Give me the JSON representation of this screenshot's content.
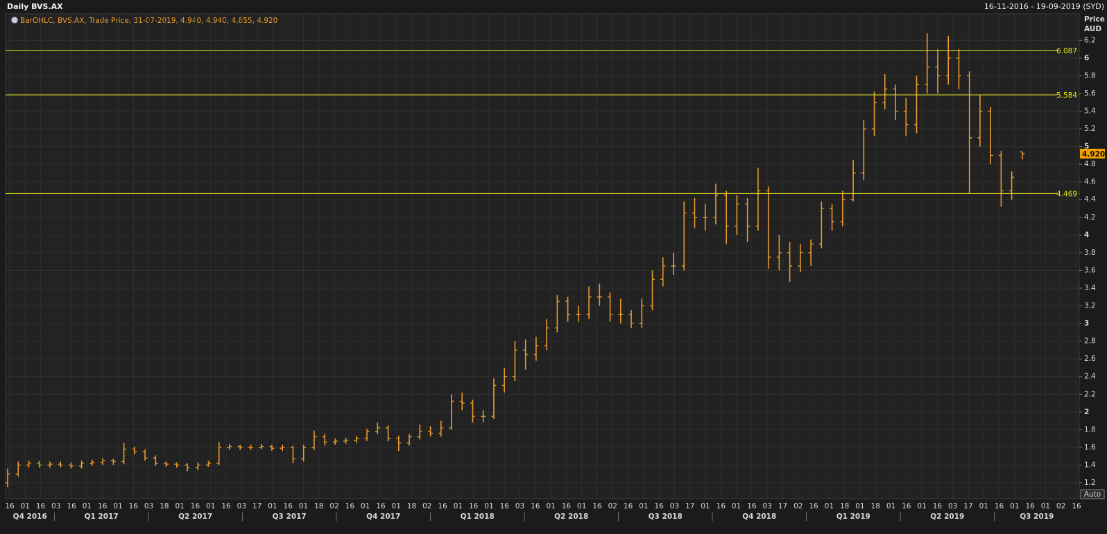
{
  "header": {
    "title": "Daily BVS.AX",
    "range": "16-11-2016 - 19-09-2019 (SYD)"
  },
  "chart_data": {
    "type": "ohlc",
    "legend": "BarOHLC, BVS.AX, Trade Price, 31-07-2019, 4.940, 4.940, 4.855, 4.920",
    "ylabel": [
      "Price",
      "AUD"
    ],
    "color": "#e89a2e",
    "ylim": [
      1.02,
      6.5
    ],
    "yticks": [
      1.2,
      1.4,
      1.6,
      1.8,
      2,
      2.2,
      2.4,
      2.6,
      2.8,
      3,
      3.2,
      3.4,
      3.6,
      3.8,
      4,
      4.2,
      4.4,
      4.6,
      4.8,
      5,
      5.2,
      5.4,
      5.6,
      5.8,
      6,
      6.2
    ],
    "grid": true,
    "ohlc": [
      [
        1.2,
        1.36,
        1.15,
        1.3
      ],
      [
        1.3,
        1.44,
        1.27,
        1.4
      ],
      [
        1.4,
        1.45,
        1.37,
        1.42
      ],
      [
        1.42,
        1.45,
        1.37,
        1.4
      ],
      [
        1.4,
        1.44,
        1.37,
        1.41
      ],
      [
        1.41,
        1.44,
        1.37,
        1.4
      ],
      [
        1.4,
        1.43,
        1.36,
        1.39
      ],
      [
        1.39,
        1.45,
        1.36,
        1.42
      ],
      [
        1.42,
        1.46,
        1.39,
        1.43
      ],
      [
        1.43,
        1.48,
        1.4,
        1.45
      ],
      [
        1.45,
        1.47,
        1.4,
        1.44
      ],
      [
        1.44,
        1.65,
        1.41,
        1.58
      ],
      [
        1.58,
        1.61,
        1.52,
        1.55
      ],
      [
        1.55,
        1.58,
        1.45,
        1.48
      ],
      [
        1.48,
        1.51,
        1.39,
        1.42
      ],
      [
        1.42,
        1.44,
        1.38,
        1.41
      ],
      [
        1.41,
        1.43,
        1.37,
        1.4
      ],
      [
        1.4,
        1.42,
        1.33,
        1.37
      ],
      [
        1.37,
        1.43,
        1.34,
        1.4
      ],
      [
        1.4,
        1.45,
        1.38,
        1.42
      ],
      [
        1.42,
        1.66,
        1.4,
        1.6
      ],
      [
        1.6,
        1.64,
        1.57,
        1.61
      ],
      [
        1.61,
        1.63,
        1.57,
        1.6
      ],
      [
        1.6,
        1.63,
        1.57,
        1.6
      ],
      [
        1.6,
        1.64,
        1.58,
        1.61
      ],
      [
        1.61,
        1.63,
        1.56,
        1.59
      ],
      [
        1.59,
        1.63,
        1.56,
        1.6
      ],
      [
        1.6,
        1.62,
        1.42,
        1.47
      ],
      [
        1.47,
        1.63,
        1.44,
        1.6
      ],
      [
        1.6,
        1.79,
        1.57,
        1.72
      ],
      [
        1.72,
        1.75,
        1.62,
        1.66
      ],
      [
        1.66,
        1.7,
        1.63,
        1.67
      ],
      [
        1.67,
        1.71,
        1.64,
        1.68
      ],
      [
        1.68,
        1.73,
        1.65,
        1.7
      ],
      [
        1.7,
        1.81,
        1.67,
        1.78
      ],
      [
        1.78,
        1.88,
        1.75,
        1.82
      ],
      [
        1.82,
        1.85,
        1.67,
        1.7
      ],
      [
        1.7,
        1.73,
        1.56,
        1.65
      ],
      [
        1.65,
        1.75,
        1.62,
        1.72
      ],
      [
        1.72,
        1.86,
        1.69,
        1.78
      ],
      [
        1.78,
        1.84,
        1.72,
        1.76
      ],
      [
        1.76,
        1.9,
        1.72,
        1.82
      ],
      [
        1.82,
        2.2,
        1.8,
        2.12
      ],
      [
        2.12,
        2.22,
        2.02,
        2.1
      ],
      [
        2.1,
        2.14,
        1.88,
        1.95
      ],
      [
        1.95,
        2.02,
        1.88,
        1.95
      ],
      [
        1.95,
        2.38,
        1.92,
        2.3
      ],
      [
        2.3,
        2.5,
        2.22,
        2.4
      ],
      [
        2.4,
        2.8,
        2.35,
        2.7
      ],
      [
        2.7,
        2.82,
        2.48,
        2.65
      ],
      [
        2.65,
        2.85,
        2.58,
        2.75
      ],
      [
        2.75,
        3.05,
        2.7,
        2.95
      ],
      [
        2.95,
        3.32,
        2.9,
        3.25
      ],
      [
        3.25,
        3.3,
        3.02,
        3.1
      ],
      [
        3.1,
        3.2,
        3.02,
        3.1
      ],
      [
        3.1,
        3.42,
        3.05,
        3.3
      ],
      [
        3.3,
        3.45,
        3.2,
        3.3
      ],
      [
        3.3,
        3.35,
        3.02,
        3.1
      ],
      [
        3.1,
        3.28,
        3.0,
        3.1
      ],
      [
        3.1,
        3.15,
        2.95,
        3.0
      ],
      [
        3.0,
        3.28,
        2.95,
        3.2
      ],
      [
        3.2,
        3.6,
        3.15,
        3.5
      ],
      [
        3.5,
        3.75,
        3.42,
        3.65
      ],
      [
        3.65,
        3.8,
        3.55,
        3.65
      ],
      [
        3.65,
        4.38,
        3.6,
        4.25
      ],
      [
        4.25,
        4.42,
        4.08,
        4.2
      ],
      [
        4.2,
        4.35,
        4.05,
        4.2
      ],
      [
        4.2,
        4.58,
        4.12,
        4.45
      ],
      [
        4.45,
        4.5,
        3.9,
        4.1
      ],
      [
        4.1,
        4.45,
        4.0,
        4.35
      ],
      [
        4.35,
        4.42,
        3.92,
        4.1
      ],
      [
        4.1,
        4.76,
        4.05,
        4.5
      ],
      [
        4.5,
        4.55,
        3.62,
        3.75
      ],
      [
        3.75,
        4.0,
        3.6,
        3.8
      ],
      [
        3.8,
        3.92,
        3.47,
        3.65
      ],
      [
        3.65,
        3.9,
        3.58,
        3.8
      ],
      [
        3.8,
        3.95,
        3.65,
        3.9
      ],
      [
        3.9,
        4.38,
        3.85,
        4.3
      ],
      [
        4.3,
        4.35,
        4.05,
        4.15
      ],
      [
        4.15,
        4.5,
        4.1,
        4.4
      ],
      [
        4.4,
        4.85,
        4.38,
        4.7
      ],
      [
        4.7,
        5.3,
        4.62,
        5.2
      ],
      [
        5.2,
        5.62,
        5.12,
        5.5
      ],
      [
        5.5,
        5.82,
        5.42,
        5.65
      ],
      [
        5.65,
        5.7,
        5.3,
        5.4
      ],
      [
        5.4,
        5.55,
        5.12,
        5.25
      ],
      [
        5.25,
        5.8,
        5.15,
        5.7
      ],
      [
        5.7,
        6.28,
        5.6,
        5.9
      ],
      [
        5.9,
        6.1,
        5.6,
        5.8
      ],
      [
        5.8,
        6.25,
        5.7,
        6.0
      ],
      [
        6.0,
        6.1,
        5.65,
        5.8
      ],
      [
        5.8,
        5.85,
        4.47,
        5.1
      ],
      [
        5.1,
        5.58,
        5.0,
        5.4
      ],
      [
        5.4,
        5.45,
        4.8,
        4.9
      ],
      [
        4.9,
        4.95,
        4.32,
        4.5
      ],
      [
        4.5,
        4.72,
        4.4,
        4.65
      ],
      [
        4.94,
        4.94,
        4.855,
        4.92
      ]
    ],
    "hlines": [
      6.087,
      5.584,
      4.469
    ],
    "hline_color": "#e6e619",
    "last_price": {
      "value": 4.92,
      "label": "4.920"
    },
    "x_tick_labels": [
      "16",
      "01",
      "16",
      "03",
      "16",
      "01",
      "16",
      "01",
      "16",
      "03",
      "18",
      "01",
      "16",
      "01",
      "16",
      "03",
      "17",
      "01",
      "16",
      "01",
      "18",
      "02",
      "16",
      "01",
      "16",
      "01",
      "18",
      "02",
      "16",
      "01",
      "16",
      "01",
      "16",
      "03",
      "16",
      "01",
      "16",
      "01",
      "16",
      "02",
      "16",
      "01",
      "16",
      "03",
      "17",
      "01",
      "16",
      "01",
      "16",
      "03",
      "17",
      "02",
      "16",
      "01",
      "18",
      "01",
      "18",
      "01",
      "16",
      "01",
      "16",
      "03",
      "17",
      "01",
      "16",
      "01",
      "16",
      "01",
      "02",
      "16"
    ],
    "quarters": [
      "Q4 2016",
      "Q1 2017",
      "Q2 2017",
      "Q3 2017",
      "Q4 2017",
      "Q1 2018",
      "Q2 2018",
      "Q3 2018",
      "Q4 2018",
      "Q1 2019",
      "Q2 2019",
      "Q3 2019"
    ],
    "button": "Auto"
  }
}
